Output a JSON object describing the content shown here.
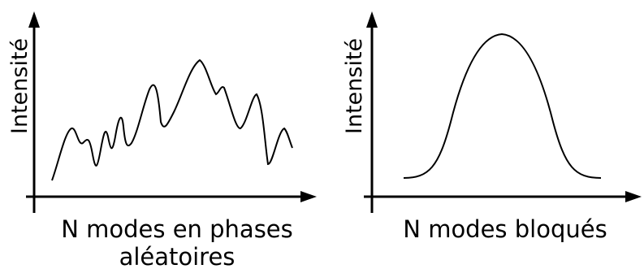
{
  "panels": [
    {
      "ylabel": "Intensité",
      "caption_lines": [
        "N modes en phases",
        "aléatoires"
      ],
      "curve_shape": "random-noisy-oscillation"
    },
    {
      "ylabel": "Intensité",
      "caption_lines": [
        "N modes bloqués",
        ""
      ],
      "curve_shape": "smooth-single-pulse"
    }
  ],
  "colors": {
    "stroke": "#000000",
    "background": "#ffffff"
  }
}
